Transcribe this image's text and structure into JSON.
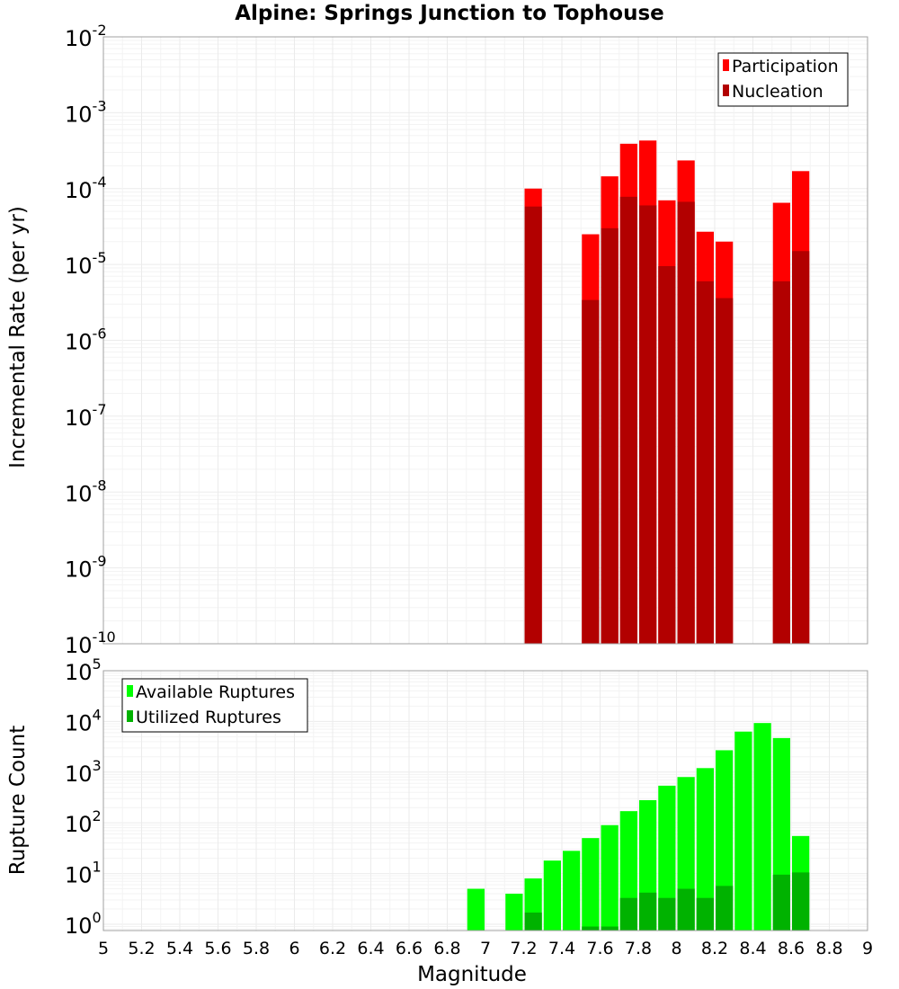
{
  "chart_data": [
    {
      "type": "bar",
      "title": "Alpine: Springs Junction to Tophouse",
      "xlabel": "",
      "ylabel": "Incremental Rate (per yr)",
      "yscale": "log",
      "ylim": [
        1e-10,
        0.01
      ],
      "xlim": [
        5,
        9
      ],
      "bar_width": 0.1,
      "grid": true,
      "legend": {
        "placement": "top-right",
        "entries": [
          "Participation",
          "Nucleation"
        ]
      },
      "series": [
        {
          "name": "Participation",
          "color": "#ff0000",
          "x": [
            7.25,
            7.55,
            7.65,
            7.75,
            7.85,
            7.95,
            8.05,
            8.15,
            8.25,
            8.55,
            8.65
          ],
          "values": [
            0.0001,
            2.5e-05,
            0.000145,
            0.00039,
            0.00043,
            7e-05,
            0.000235,
            2.7e-05,
            2e-05,
            6.5e-05,
            0.00017
          ]
        },
        {
          "name": "Nucleation",
          "color": "#b20000",
          "x": [
            7.25,
            7.55,
            7.65,
            7.75,
            7.85,
            7.95,
            8.05,
            8.15,
            8.25,
            8.55,
            8.65
          ],
          "values": [
            5.8e-05,
            3.4e-06,
            3e-05,
            7.8e-05,
            6e-05,
            9.5e-06,
            6.7e-05,
            6e-06,
            3.6e-06,
            6e-06,
            1.5e-05
          ]
        }
      ]
    },
    {
      "type": "bar",
      "title": "",
      "xlabel": "Magnitude",
      "ylabel": "Rupture Count",
      "yscale": "log",
      "ylim": [
        0.75,
        100000.0
      ],
      "xlim": [
        5,
        9
      ],
      "bar_width": 0.1,
      "grid": true,
      "x_tick_labels": [
        "5",
        "5.2",
        "5.4",
        "5.6",
        "5.8",
        "6",
        "6.2",
        "6.4",
        "6.6",
        "6.8",
        "7",
        "7.2",
        "7.4",
        "7.6",
        "7.8",
        "8",
        "8.2",
        "8.4",
        "8.6",
        "8.8",
        "9"
      ],
      "legend": {
        "placement": "top-left",
        "entries": [
          "Available Ruptures",
          "Utilized Ruptures"
        ]
      },
      "series": [
        {
          "name": "Available Ruptures",
          "color": "#00ff00",
          "x": [
            6.95,
            7.15,
            7.25,
            7.35,
            7.45,
            7.55,
            7.65,
            7.75,
            7.85,
            7.95,
            8.05,
            8.15,
            8.25,
            8.35,
            8.45,
            8.55,
            8.65
          ],
          "values": [
            5,
            4,
            8,
            18,
            28,
            50,
            90,
            170,
            280,
            540,
            800,
            1200,
            2700,
            6300,
            9300,
            4700,
            55
          ]
        },
        {
          "name": "Utilized Ruptures",
          "color": "#00b200",
          "x": [
            7.25,
            7.55,
            7.65,
            7.75,
            7.85,
            7.95,
            8.05,
            8.15,
            8.25,
            8.55,
            8.65
          ],
          "values": [
            1.7,
            0.9,
            0.9,
            3.3,
            4.2,
            3.3,
            5.0,
            3.3,
            5.7,
            9.5,
            10.5
          ]
        }
      ]
    }
  ],
  "style": {
    "axis_color": "#a0a0a0",
    "grid_color": "#ebebeb",
    "minor_grid_color": "#f3f3f3"
  }
}
